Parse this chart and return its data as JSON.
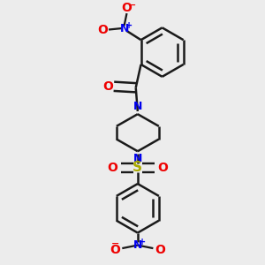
{
  "bg_color": "#ececec",
  "bond_color": "#1a1a1a",
  "N_color": "#0000ee",
  "O_color": "#ee0000",
  "S_color": "#aaaa00",
  "lw": 1.8,
  "dbo": 0.022,
  "figsize": [
    3.0,
    3.0
  ],
  "dpi": 100,
  "xlim": [
    0,
    1
  ],
  "ylim": [
    0,
    1
  ]
}
